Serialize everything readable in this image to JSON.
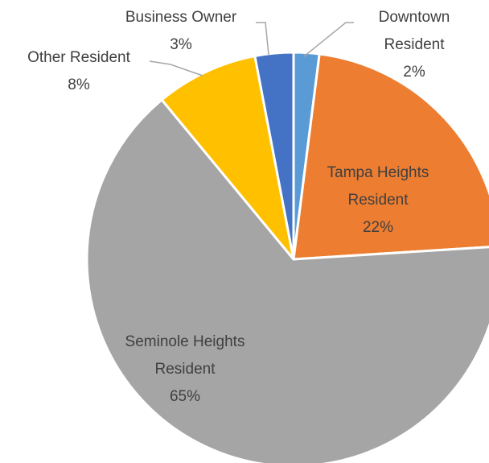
{
  "chart_data": {
    "type": "pie",
    "categories": [
      "Downtown Resident",
      "Tampa Heights Resident",
      "Seminole Heights Resident",
      "Other Resident",
      "Business Owner"
    ],
    "values": [
      2,
      22,
      65,
      8,
      3
    ],
    "value_labels": [
      "2%",
      "22%",
      "65%",
      "8%",
      "3%"
    ],
    "colors": [
      "#5b9bd5",
      "#ed7d31",
      "#a5a5a5",
      "#ffc000",
      "#4472c4"
    ]
  }
}
